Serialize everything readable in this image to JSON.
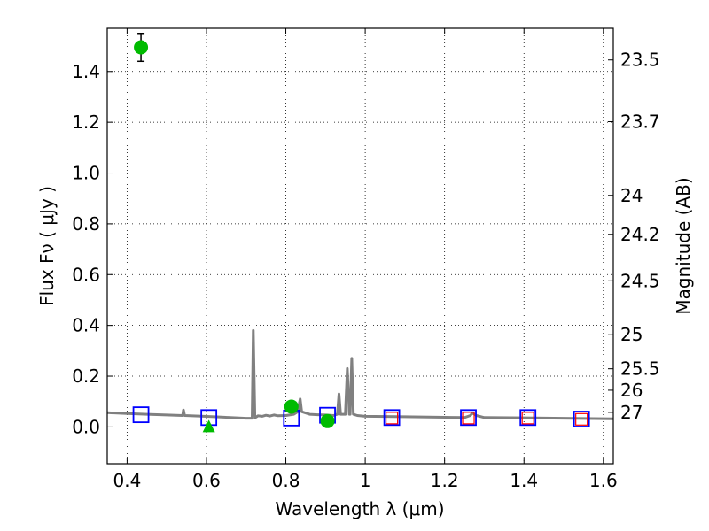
{
  "chart_data": {
    "type": "scatter",
    "title": "",
    "xlabel": "Wavelength  λ (μm)",
    "ylabel": "Flux  Fν  ( μJy )",
    "ylabel_right": "Magnitude (AB)",
    "xlim": [
      0.35,
      1.625
    ],
    "ylim": [
      -0.145,
      1.57
    ],
    "grid": true,
    "x_ticks": [
      {
        "value": 0.4,
        "label": "0.4"
      },
      {
        "value": 0.6,
        "label": "0.6"
      },
      {
        "value": 0.8,
        "label": "0.8"
      },
      {
        "value": 1.0,
        "label": "1"
      },
      {
        "value": 1.2,
        "label": "1.2"
      },
      {
        "value": 1.4,
        "label": "1.4"
      },
      {
        "value": 1.6,
        "label": "1.6"
      }
    ],
    "y_ticks": [
      {
        "value": 0.0,
        "label": "0.0"
      },
      {
        "value": 0.2,
        "label": "0.2"
      },
      {
        "value": 0.4,
        "label": "0.4"
      },
      {
        "value": 0.6,
        "label": "0.6"
      },
      {
        "value": 0.8,
        "label": "0.8"
      },
      {
        "value": 1.0,
        "label": "1.0"
      },
      {
        "value": 1.2,
        "label": "1.2"
      },
      {
        "value": 1.4,
        "label": "1.4"
      }
    ],
    "right_ticks": [
      {
        "mag": 23.5,
        "label": "23.5"
      },
      {
        "mag": 23.7,
        "label": "23.7"
      },
      {
        "mag": 24.0,
        "label": "24"
      },
      {
        "mag": 24.2,
        "label": "24.2"
      },
      {
        "mag": 24.5,
        "label": "24.5"
      },
      {
        "mag": 25.0,
        "label": "25"
      },
      {
        "mag": 25.5,
        "label": "25.5"
      },
      {
        "mag": 26.0,
        "label": "26"
      },
      {
        "mag": 27.0,
        "label": "27"
      }
    ],
    "series": [
      {
        "kind": "model_spectrum",
        "color": "#808080",
        "points": [
          [
            0.35,
            0.056
          ],
          [
            0.4,
            0.053
          ],
          [
            0.45,
            0.05
          ],
          [
            0.5,
            0.047
          ],
          [
            0.54,
            0.045
          ],
          [
            0.542,
            0.067
          ],
          [
            0.545,
            0.045
          ],
          [
            0.58,
            0.043
          ],
          [
            0.62,
            0.04
          ],
          [
            0.66,
            0.037
          ],
          [
            0.7,
            0.034
          ],
          [
            0.715,
            0.034
          ],
          [
            0.718,
            0.38
          ],
          [
            0.722,
            0.036
          ],
          [
            0.73,
            0.044
          ],
          [
            0.74,
            0.042
          ],
          [
            0.75,
            0.046
          ],
          [
            0.76,
            0.043
          ],
          [
            0.77,
            0.047
          ],
          [
            0.78,
            0.044
          ],
          [
            0.8,
            0.045
          ],
          [
            0.82,
            0.05
          ],
          [
            0.83,
            0.06
          ],
          [
            0.836,
            0.11
          ],
          [
            0.84,
            0.06
          ],
          [
            0.86,
            0.05
          ],
          [
            0.88,
            0.048
          ],
          [
            0.9,
            0.047
          ],
          [
            0.92,
            0.045
          ],
          [
            0.93,
            0.05
          ],
          [
            0.934,
            0.13
          ],
          [
            0.938,
            0.05
          ],
          [
            0.95,
            0.05
          ],
          [
            0.955,
            0.23
          ],
          [
            0.96,
            0.05
          ],
          [
            0.962,
            0.05
          ],
          [
            0.966,
            0.27
          ],
          [
            0.97,
            0.05
          ],
          [
            0.98,
            0.045
          ],
          [
            1.0,
            0.042
          ],
          [
            1.1,
            0.04
          ],
          [
            1.2,
            0.038
          ],
          [
            1.25,
            0.037
          ],
          [
            1.265,
            0.045
          ],
          [
            1.27,
            0.055
          ],
          [
            1.28,
            0.045
          ],
          [
            1.3,
            0.037
          ],
          [
            1.4,
            0.036
          ],
          [
            1.5,
            0.034
          ],
          [
            1.625,
            0.032
          ]
        ]
      },
      {
        "kind": "model_photometry",
        "marker": "open-square",
        "color": "#0000ff",
        "points": [
          [
            0.435,
            0.048
          ],
          [
            0.606,
            0.037
          ],
          [
            0.814,
            0.035
          ],
          [
            0.905,
            0.046
          ],
          [
            1.067,
            0.037
          ],
          [
            1.26,
            0.037
          ],
          [
            1.41,
            0.037
          ],
          [
            1.545,
            0.031
          ]
        ]
      },
      {
        "kind": "observed_red",
        "marker": "open-square",
        "color": "#ff0000",
        "points": [
          [
            1.067,
            0.035
          ],
          [
            1.26,
            0.035
          ],
          [
            1.41,
            0.035
          ],
          [
            1.545,
            0.03
          ]
        ]
      },
      {
        "kind": "observed_detections",
        "marker": "circle",
        "color": "#00bb00",
        "points": [
          {
            "x": 0.435,
            "y": 1.495,
            "err": 0.055
          },
          {
            "x": 0.814,
            "y": 0.08,
            "err": 0.02
          },
          {
            "x": 0.905,
            "y": 0.023,
            "err": 0.017
          }
        ]
      },
      {
        "kind": "upper_limit",
        "marker": "triangle",
        "color": "#00bb00",
        "points": [
          [
            0.606,
            0.0
          ]
        ]
      }
    ]
  }
}
